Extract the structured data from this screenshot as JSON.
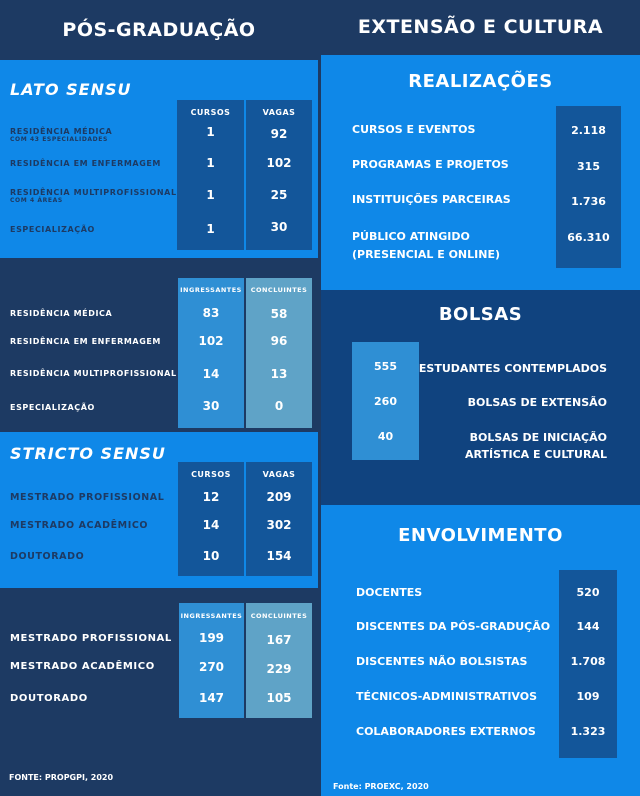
{
  "left": {
    "title": "PÓS-GRADUAÇÃO",
    "lato_sensu": {
      "heading": "LATO SENSU",
      "vagas_table": {
        "headers": [
          "CURSOS",
          "VAGAS"
        ],
        "rows": [
          {
            "label": "RESIDÊNCIA MÉDICA",
            "note": "COM 43 ESPECIALIDADES",
            "cursos": "1",
            "vagas": "92"
          },
          {
            "label": "RESIDÊNCIA EM ENFERMAGEM",
            "cursos": "1",
            "vagas": "102"
          },
          {
            "label": "RESIDÊNCIA MULTIPROFISSIONAL",
            "note": "COM 4 ÁREAS",
            "cursos": "1",
            "vagas": "25"
          },
          {
            "label": "ESPECIALIZAÇÃO",
            "cursos": "1",
            "vagas": "30"
          }
        ]
      },
      "alunos_table": {
        "headers": [
          "INGRESSANTES",
          "CONCLUINTES"
        ],
        "rows": [
          {
            "label": "RESIDÊNCIA MÉDICA",
            "ingressantes": "83",
            "concluintes": "58"
          },
          {
            "label": "RESIDÊNCIA EM ENFERMAGEM",
            "ingressantes": "102",
            "concluintes": "96"
          },
          {
            "label": "RESIDÊNCIA MULTIPROFISSIONAL",
            "ingressantes": "14",
            "concluintes": "13"
          },
          {
            "label": "ESPECIALIZAÇÃO",
            "ingressantes": "30",
            "concluintes": "0"
          }
        ]
      }
    },
    "stricto_sensu": {
      "heading": "STRICTO SENSU",
      "vagas_table": {
        "headers": [
          "CURSOS",
          "VAGAS"
        ],
        "rows": [
          {
            "label": "MESTRADO PROFISSIONAL",
            "cursos": "12",
            "vagas": "209"
          },
          {
            "label": "MESTRADO ACADÊMICO",
            "cursos": "14",
            "vagas": "302"
          },
          {
            "label": "DOUTORADO",
            "cursos": "10",
            "vagas": "154"
          }
        ]
      },
      "alunos_table": {
        "headers": [
          "INGRESSANTES",
          "CONCLUINTES"
        ],
        "rows": [
          {
            "label": "MESTRADO PROFISSIONAL",
            "ingressantes": "199",
            "concluintes": "167"
          },
          {
            "label": "MESTRADO ACADÊMICO",
            "ingressantes": "270",
            "concluintes": "229"
          },
          {
            "label": "DOUTORADO",
            "ingressantes": "147",
            "concluintes": "105"
          }
        ]
      }
    },
    "source": "FONTE: PROPGPI, 2020"
  },
  "right": {
    "title": "EXTENSÃO E CULTURA",
    "realizacoes": {
      "heading": "REALIZAÇÕES",
      "rows": [
        {
          "label": "CURSOS E EVENTOS",
          "value": "2.118"
        },
        {
          "label": "PROGRAMAS E PROJETOS",
          "value": "315"
        },
        {
          "label": "INSTITUIÇÕES PARCEIRAS",
          "value": "1.736"
        },
        {
          "label": "PÚBLICO ATINGIDO",
          "label2": "(PRESENCIAL E ONLINE)",
          "value": "66.310"
        }
      ]
    },
    "bolsas": {
      "heading": "BOLSAS",
      "rows": [
        {
          "value": "555",
          "label": "ESTUDANTES CONTEMPLADOS"
        },
        {
          "value": "260",
          "label": "BOLSAS DE EXTENSÃO"
        },
        {
          "value": "40",
          "label": "BOLSAS DE INICIAÇÃO",
          "label2": "ARTÍSTICA E CULTURAL"
        }
      ]
    },
    "envolvimento": {
      "heading": "ENVOLVIMENTO",
      "rows": [
        {
          "label": "DOCENTES",
          "value": "520"
        },
        {
          "label": "DISCENTES DA PÓS-GRADUÇÃO",
          "value": "144"
        },
        {
          "label": "DISCENTES NÃO BOLSISTAS",
          "value": "1.708"
        },
        {
          "label": "TÉCNICOS-ADMINISTRATIVOS",
          "value": "109"
        },
        {
          "label": "COLABORADORES EXTERNOS",
          "value": "1.323"
        }
      ]
    },
    "source": "Fonte: PROEXC, 2020"
  },
  "colors": {
    "dark": "#1d3a63",
    "bright": "#0f88e8",
    "mid": "#10437f",
    "col_dark": "#13569a",
    "col_ingressantes": "#2f8fd4",
    "col_concluintes": "#5fa3c7"
  }
}
